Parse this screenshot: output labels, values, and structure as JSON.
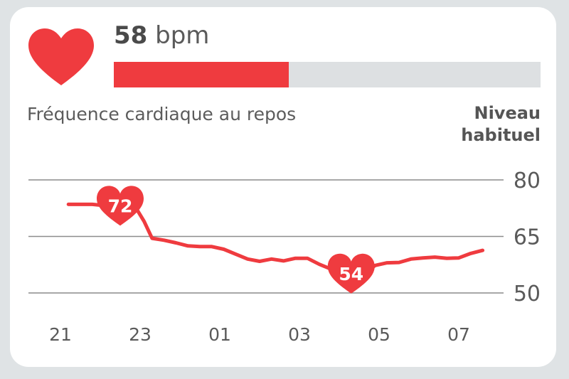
{
  "header": {
    "bpm_value": "58",
    "bpm_unit": "bpm",
    "progress_fraction": 0.41
  },
  "subtitle": "Fréquence cardiaque au repos",
  "legend": {
    "line1": "Niveau",
    "line2": "habituel"
  },
  "colors": {
    "accent": "#ef3b3f",
    "track": "#dde0e2",
    "grid": "#8c8c8c",
    "text": "#5c5c5c"
  },
  "icons": {
    "header": "heart-icon",
    "markers": "heart-marker-icon"
  },
  "chart_data": {
    "type": "line",
    "xlabel": "",
    "ylabel": "",
    "x_tick_labels": [
      "21",
      "23",
      "01",
      "03",
      "05",
      "07"
    ],
    "x_ticks": [
      0,
      2,
      4,
      6,
      8,
      10
    ],
    "xlim": [
      0,
      11
    ],
    "y_ticks": [
      50,
      65,
      80
    ],
    "ylim": [
      50,
      80
    ],
    "grid": true,
    "series": [
      {
        "x": [
          0.2,
          0.5,
          0.8,
          1.0,
          1.3,
          1.6,
          1.9,
          2.1,
          2.3,
          2.6,
          2.9,
          3.2,
          3.5,
          3.8,
          4.1,
          4.4,
          4.7,
          5.0,
          5.3,
          5.6,
          5.9,
          6.2,
          6.5,
          6.8,
          7.0,
          7.3,
          7.6,
          7.9,
          8.2,
          8.5,
          8.8,
          9.1,
          9.4,
          9.7,
          10.0,
          10.3,
          10.6
        ],
        "values": [
          73.5,
          73.5,
          73.5,
          73.3,
          72.5,
          71.0,
          72.5,
          69.0,
          64.5,
          64.0,
          63.3,
          62.5,
          62.3,
          62.3,
          61.6,
          60.3,
          59.0,
          58.4,
          59.0,
          58.5,
          59.2,
          59.2,
          57.6,
          56.3,
          55.8,
          54.8,
          55.0,
          57.3,
          58.0,
          58.1,
          59.0,
          59.3,
          59.5,
          59.2,
          59.3,
          60.5,
          61.3
        ]
      }
    ],
    "annotations": [
      {
        "label": "72",
        "x": 1.5,
        "y": 72
      },
      {
        "label": "54",
        "x": 7.3,
        "y": 54
      }
    ]
  }
}
